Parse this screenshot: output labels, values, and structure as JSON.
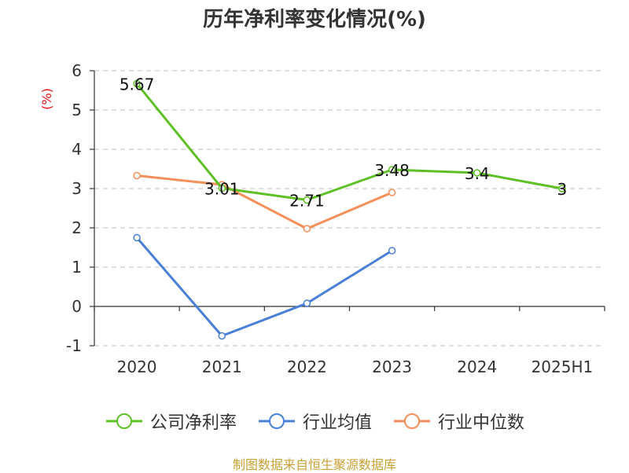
{
  "chart_data": {
    "type": "line",
    "title": "历年净利率变化情况(%)",
    "ylabel": "(%)",
    "xlabel": "",
    "categories": [
      "2020",
      "2021",
      "2022",
      "2023",
      "2024",
      "2025H1"
    ],
    "ylim": [
      -1,
      6
    ],
    "yticks": [
      -1,
      0,
      1,
      2,
      3,
      4,
      5,
      6
    ],
    "grid": true,
    "legend_position": "bottom",
    "series": [
      {
        "name": "公司净利率",
        "color": "#5ec025",
        "values": [
          5.67,
          3.01,
          2.71,
          3.48,
          3.4,
          3
        ],
        "data_labels": [
          "5.67",
          "3.01",
          "2.71",
          "3.48",
          "3.4",
          "3"
        ]
      },
      {
        "name": "行业均值",
        "color": "#4a7fd8",
        "values": [
          1.75,
          -0.75,
          0.08,
          1.42,
          null,
          null
        ]
      },
      {
        "name": "行业中位数",
        "color": "#f58f5a",
        "values": [
          3.33,
          3.1,
          1.98,
          2.9,
          null,
          null
        ]
      }
    ]
  },
  "source": "制图数据来自恒生聚源数据库",
  "colors": {
    "ylabel": "#e01010",
    "axis": "#333333",
    "grid": "#cccccc",
    "source": "#c8a035"
  }
}
